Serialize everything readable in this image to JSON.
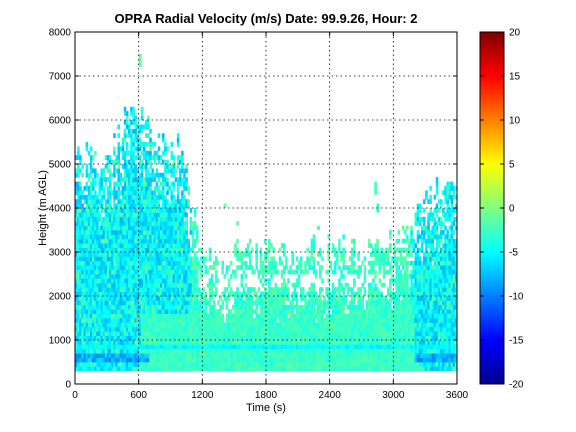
{
  "chart_data": {
    "type": "heatmap",
    "title": "OPRA Radial Velocity (m/s)  Date: 99.9.26, Hour: 2",
    "xlabel": "Time (s)",
    "ylabel": "Height (m AGL)",
    "xlim": [
      0,
      3600
    ],
    "ylim": [
      0,
      8000
    ],
    "x_ticks": [
      "0",
      "600",
      "1200",
      "1800",
      "2400",
      "3000",
      "3600"
    ],
    "y_ticks": [
      "0",
      "1000",
      "2000",
      "3000",
      "4000",
      "5000",
      "6000",
      "7000",
      "8000"
    ],
    "grid": true,
    "colormap": "jet",
    "colorbar": {
      "range": [
        -20,
        20
      ],
      "ticks": [
        "20",
        "15",
        "10",
        "5",
        "0",
        "-5",
        "-10",
        "-15",
        "-20"
      ]
    },
    "description_values": {
      "dominant_range_m_s": [
        -7,
        0
      ],
      "height_profile": [
        {
          "t": 0,
          "top": 5000
        },
        {
          "t": 300,
          "top": 5200
        },
        {
          "t": 550,
          "top": 6300
        },
        {
          "t": 750,
          "top": 5600
        },
        {
          "t": 1000,
          "top": 5200
        },
        {
          "t": 1200,
          "top": 3000
        },
        {
          "t": 1800,
          "top": 3000
        },
        {
          "t": 2400,
          "top": 3000
        },
        {
          "t": 3000,
          "top": 3200
        },
        {
          "t": 3400,
          "top": 4200
        },
        {
          "t": 3600,
          "top": 4500
        }
      ]
    }
  }
}
